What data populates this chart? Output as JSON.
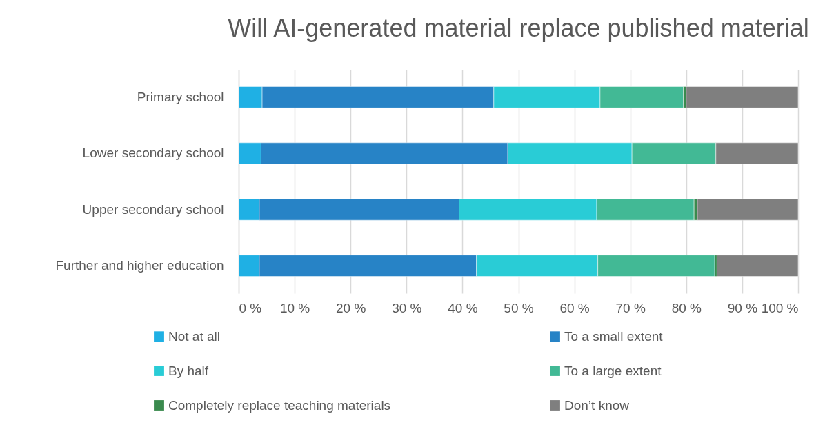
{
  "chart_data": {
    "type": "bar",
    "orientation": "horizontal",
    "stacked": true,
    "title": "Will AI-generated material replace published material",
    "categories": [
      "Primary school",
      "Lower secondary school",
      "Upper secondary school",
      "Further and higher education"
    ],
    "series": [
      {
        "name": "Not at all",
        "color": "#1fb0e4",
        "values": [
          4.2,
          4.0,
          3.7,
          3.7
        ]
      },
      {
        "name": "To a small extent",
        "color": "#2783c6",
        "values": [
          41.4,
          44.1,
          35.7,
          38.8
        ]
      },
      {
        "name": "By half",
        "color": "#29ccd6",
        "values": [
          19.0,
          22.2,
          24.6,
          21.7
        ]
      },
      {
        "name": "To a large extent",
        "color": "#42b995",
        "values": [
          14.9,
          15.0,
          17.4,
          20.9
        ]
      },
      {
        "name": "Completely replace teaching materials",
        "color": "#3a8a4e",
        "values": [
          0.5,
          null,
          0.6,
          0.4
        ]
      },
      {
        "name": "Don’t know",
        "color": "#7f7f7f",
        "values": [
          20.0,
          14.7,
          18.0,
          14.5
        ]
      }
    ],
    "xlim": [
      0,
      100
    ],
    "xticks": [
      {
        "value": 0,
        "label": "0 %"
      },
      {
        "value": 10,
        "label": "10 %"
      },
      {
        "value": 20,
        "label": "20 %"
      },
      {
        "value": 30,
        "label": "30 %"
      },
      {
        "value": 40,
        "label": "40 %"
      },
      {
        "value": 50,
        "label": "50 %"
      },
      {
        "value": 60,
        "label": "60 %"
      },
      {
        "value": 70,
        "label": "70 %"
      },
      {
        "value": 80,
        "label": "80 %"
      },
      {
        "value": 90,
        "label": "90 %"
      },
      {
        "value": 100,
        "label": "100 %"
      }
    ],
    "grid": "x",
    "legend": "bottom"
  }
}
